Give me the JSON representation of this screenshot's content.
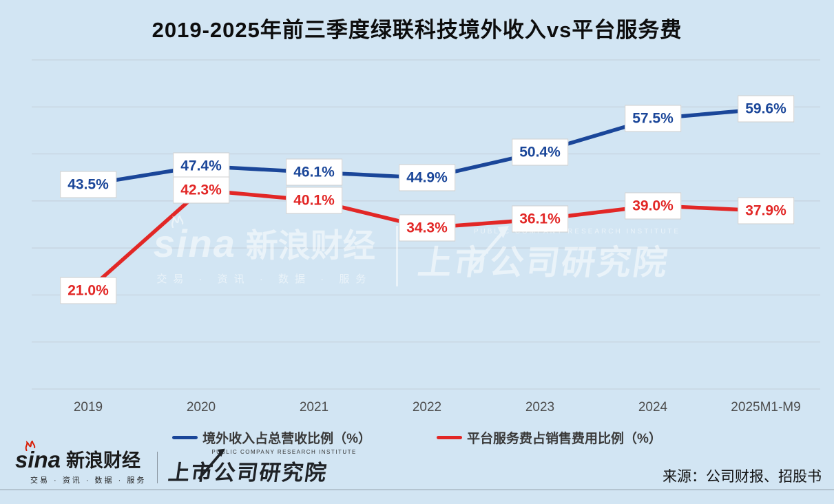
{
  "title": "2019-2025年前三季度绿联科技境外收入vs平台服务费",
  "chart_data": {
    "type": "line",
    "title": "2019-2025年前三季度绿联科技境外收入vs平台服务费",
    "categories": [
      "2019",
      "2020",
      "2021",
      "2022",
      "2023",
      "2024",
      "2025M1-M9"
    ],
    "series": [
      {
        "name": "境外收入占总营收比例（%）",
        "color": "#1a4699",
        "values": [
          43.5,
          47.4,
          46.1,
          44.9,
          50.4,
          57.5,
          59.6
        ]
      },
      {
        "name": "平台服务费占销售费用比例（%）",
        "color": "#e22726",
        "values": [
          21.0,
          42.3,
          40.1,
          34.3,
          36.1,
          39.0,
          37.9
        ]
      }
    ],
    "xlabel": "",
    "ylabel": "",
    "ylim": [
      0,
      70
    ],
    "grid": "horizontal gridlines every 10%, no y-axis tick labels",
    "legend_position": "bottom",
    "data_labels": "every point labeled, format one decimal + %"
  },
  "watermark": {
    "sina_logo_text": "sina",
    "sina_name": "新浪财经",
    "sina_tagline": "交易 · 资讯 · 数据 · 服务",
    "institute_subtitle": "PUBLIC COMPANY RESEARCH INSTITUTE",
    "institute_name": "上市公司研究院"
  },
  "footer": {
    "sina_logo_text": "sina",
    "sina_name": "新浪财经",
    "sina_tagline": "交易 · 资讯 · 数据 · 服务",
    "institute_subtitle": "PUBLIC COMPANY RESEARCH INSTITUTE",
    "institute_name": "上市公司研究院",
    "source": "来源：公司财报、招股书"
  },
  "colors": {
    "background": "#d2e5f3",
    "blue_series": "#1a4699",
    "red_series": "#e22726",
    "gridline": "#c3ced8",
    "axis_label": "#4c4c4c",
    "label_box_bg": "#ffffff",
    "label_box_border": "#cfcfcf",
    "footer_rule": "#8e99a4"
  }
}
